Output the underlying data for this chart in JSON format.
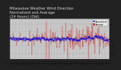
{
  "title": "Milwaukee Weather Wind Direction\nNormalized and Average\n(24 Hours) (Old)",
  "legend_labels": [
    "Normalized",
    "Average"
  ],
  "legend_colors": [
    "#0000dd",
    "#cc0000"
  ],
  "bg_color": "#222222",
  "plot_bg_color": "#c8c8c8",
  "grid_color": "#888888",
  "bar_color": "#cc0000",
  "avg_color": "#0000dd",
  "n_points": 200,
  "ylim": [
    -5.5,
    5.5
  ],
  "y_ticks": [
    -4,
    -2,
    0,
    2,
    4
  ],
  "title_fontsize": 3.8,
  "axis_fontsize": 2.8,
  "title_color": "#dddddd"
}
